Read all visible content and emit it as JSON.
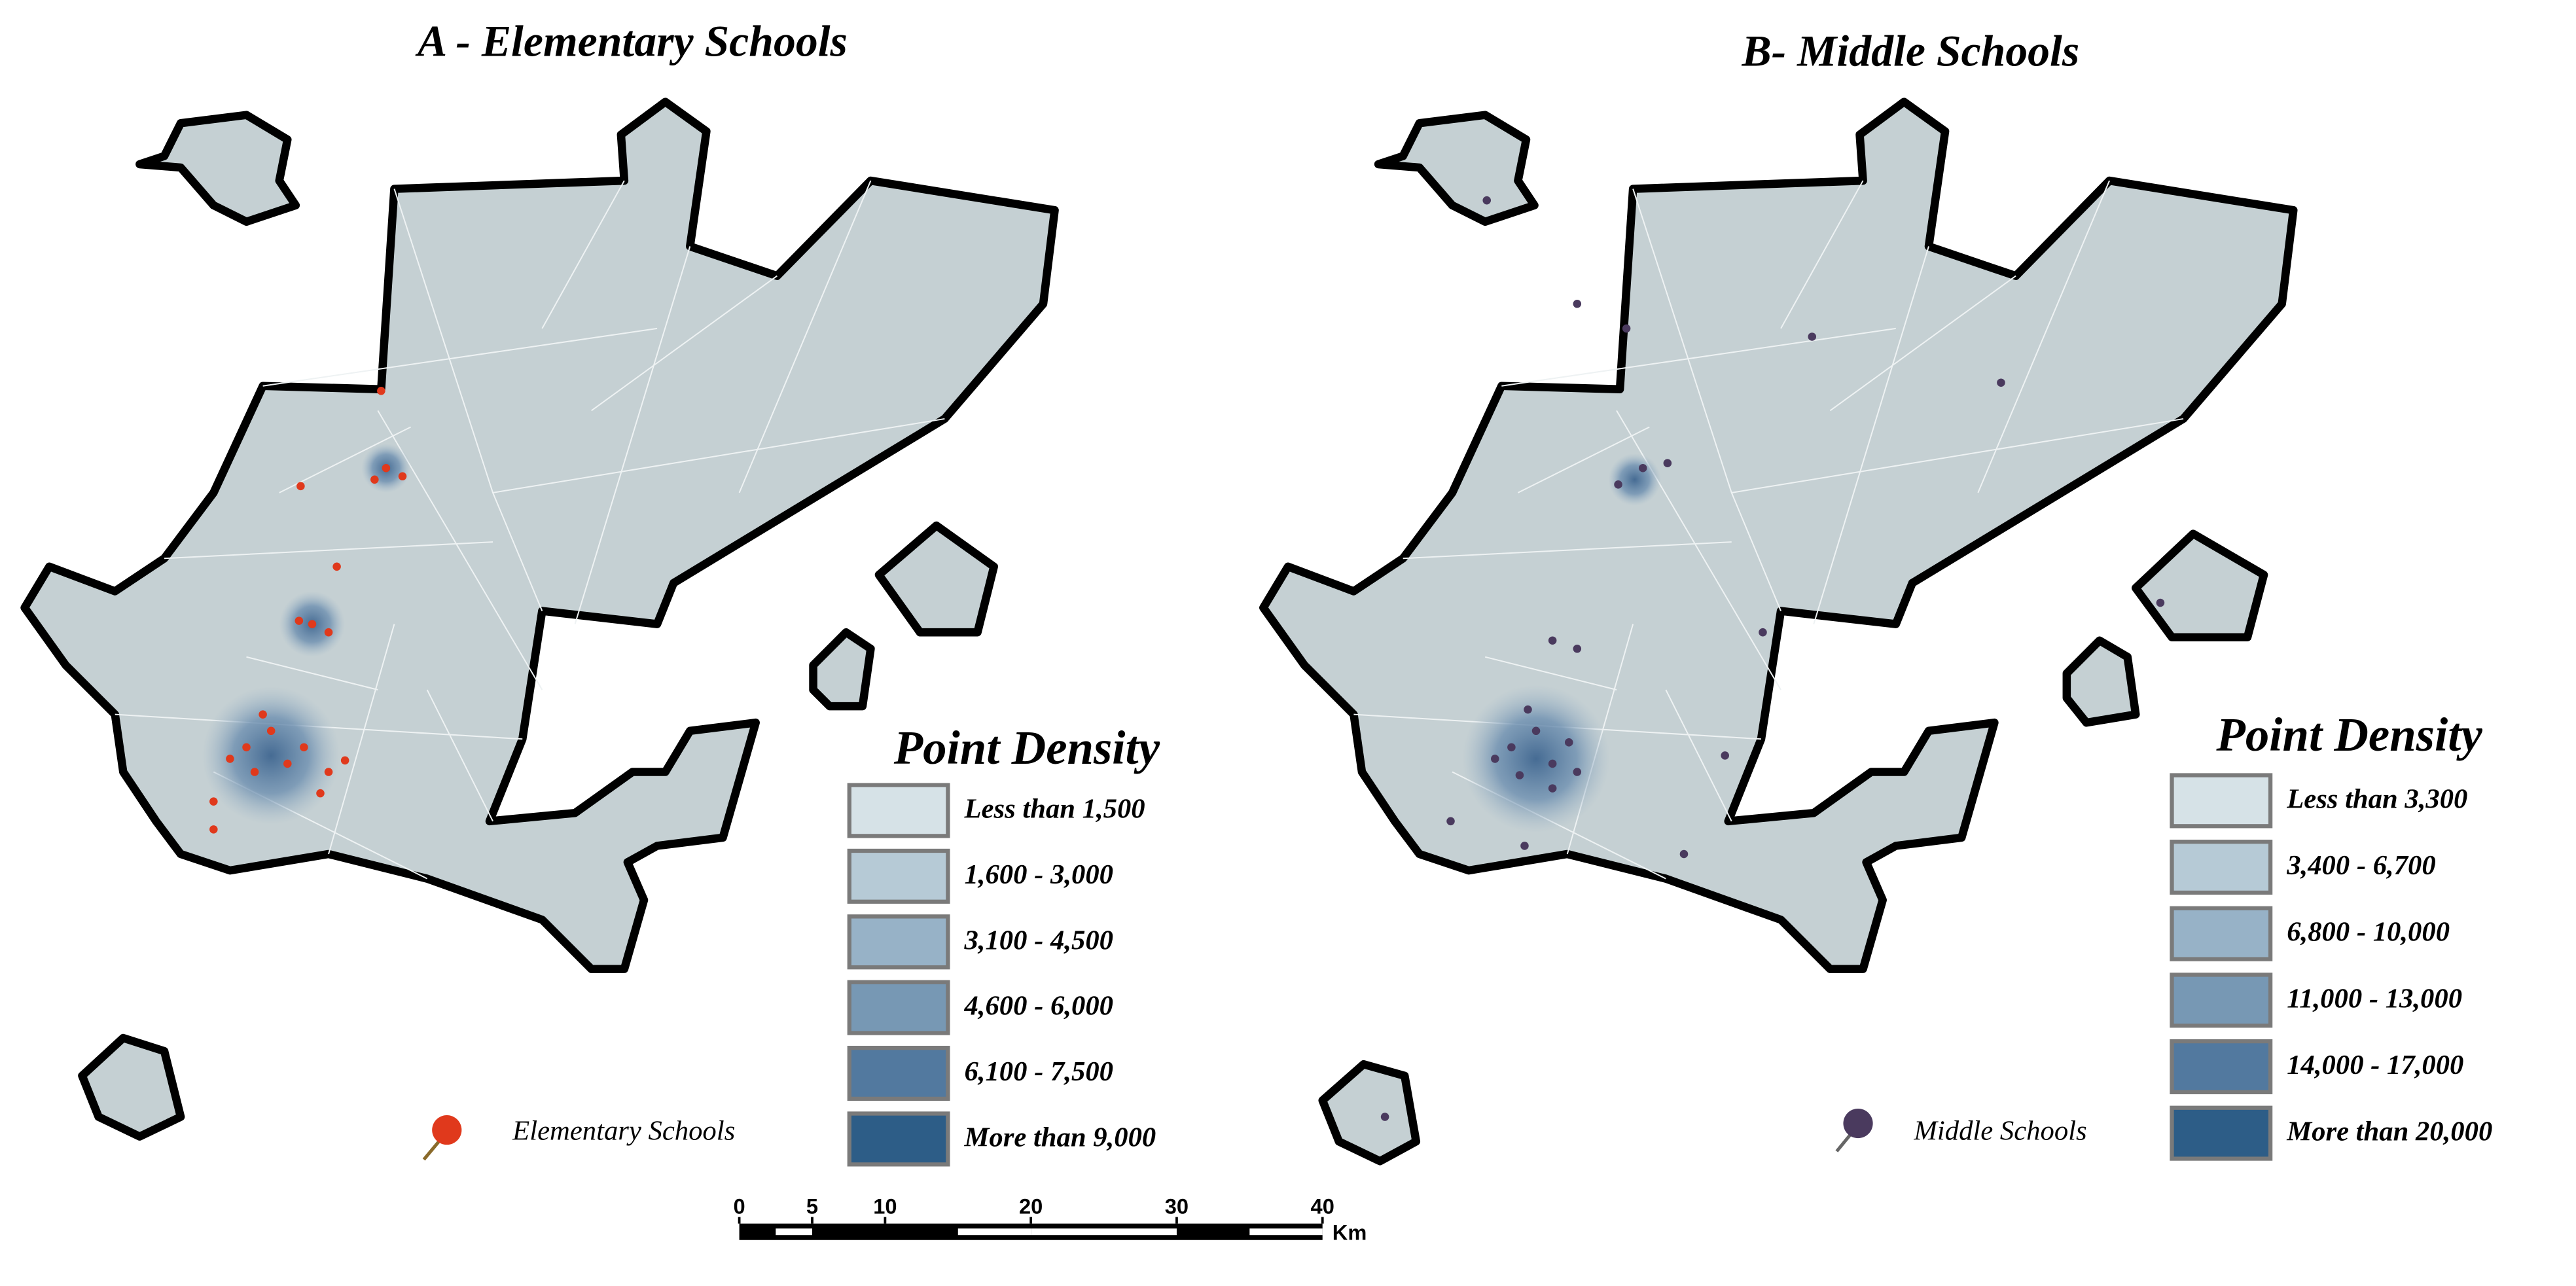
{
  "panels": [
    {
      "title": "A - Elementary Schools",
      "legend": {
        "title": "Point Density",
        "classes": [
          {
            "label": "Less than 1,500",
            "color": "#d6e2e7"
          },
          {
            "label": "1,600 - 3,000",
            "color": "#b6cad6"
          },
          {
            "label": "3,100 - 4,500",
            "color": "#97b2c7"
          },
          {
            "label": "4,600 - 6,000",
            "color": "#7798b4"
          },
          {
            "label": "6,100 - 7,500",
            "color": "#52799f"
          },
          {
            "label": "More than 9,000",
            "color": "#2d5d87"
          }
        ]
      },
      "point_label": "Elementary Schools",
      "point_color": "#e0391c"
    },
    {
      "title": "B- Middle Schools",
      "legend": {
        "title": "Point Density",
        "classes": [
          {
            "label": "Less than 3,300",
            "color": "#d6e2e7"
          },
          {
            "label": "3,400 - 6,700",
            "color": "#b6cad6"
          },
          {
            "label": "6,800 - 10,000",
            "color": "#97b2c7"
          },
          {
            "label": "11,000 - 13,000",
            "color": "#7798b4"
          },
          {
            "label": "14,000 - 17,000",
            "color": "#52799f"
          },
          {
            "label": "More than 20,000",
            "color": "#2d5d87"
          }
        ]
      },
      "point_label": "Middle Schools",
      "point_color": "#4a3a5e"
    }
  ],
  "scale_bar": {
    "ticks": [
      0,
      5,
      10,
      20,
      30,
      40
    ],
    "unit": "Km"
  }
}
